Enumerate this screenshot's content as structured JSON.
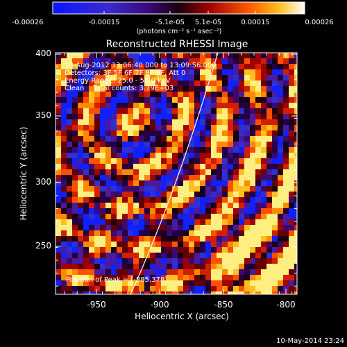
{
  "colorbar": {
    "tick_labels": [
      "-0.00026",
      "-0.00015",
      "-5.1e-05",
      "5.1e-05",
      "0.00015",
      "0.00026"
    ],
    "unit_label": "(photons cm⁻² s⁻¹ asec⁻²)"
  },
  "plot": {
    "title": "Reconstructed RHESSI Image",
    "xlabel": "Heliocentric X (arcsec)",
    "ylabel": "Heliocentric Y (arcsec)",
    "x_ticks": [
      "-950",
      "-900",
      "-850",
      "-800"
    ],
    "y_ticks": [
      "400",
      "350",
      "300",
      "250"
    ],
    "xlim": [
      -985,
      -790
    ],
    "ylim": [
      205,
      400
    ]
  },
  "annotations": {
    "time_range": "18-Aug-2012 13:06:40.000 to 13:09:56.000",
    "detectors": "Detectors: 3F 5F 6F 7F 8F 9F, Att 0",
    "energy": "Energy Range: 25.0 - 50.0 keV",
    "clean": "Clean    Total counts: 3.79E+03",
    "peak": "Position of Peak = [-885,378]"
  },
  "footer": {
    "date": "10-May-2014 23:24"
  },
  "colors": {
    "background": "#000000",
    "text": "#ffffff",
    "limb": "#ffffff"
  }
}
